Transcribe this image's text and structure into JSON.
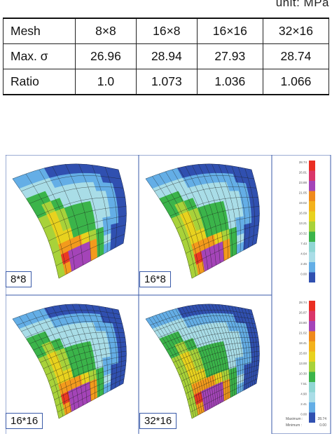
{
  "unit_label": "unit: MPa",
  "table": {
    "header": [
      "Mesh",
      "8×8",
      "16×8",
      "16×16",
      "32×16"
    ],
    "rows": [
      [
        "Max. σ",
        "26.96",
        "28.94",
        "27.93",
        "28.74"
      ],
      [
        "Ratio",
        "1.0",
        "1.073",
        "1.036",
        "1.066"
      ]
    ]
  },
  "panels": [
    {
      "label": "8*8",
      "grid_cols": 8,
      "grid_rows": 8
    },
    {
      "label": "16*8",
      "grid_cols": 16,
      "grid_rows": 8
    },
    {
      "label": "16*16",
      "grid_cols": 16,
      "grid_rows": 16
    },
    {
      "label": "32*16",
      "grid_cols": 32,
      "grid_rows": 16
    }
  ],
  "legend_top": {
    "values": [
      "28.74",
      "26.81",
      "23.88",
      "21.05",
      "19.02",
      "16.09",
      "13.21",
      "10.32",
      "7.43",
      "4.64",
      "2.45",
      "0.00"
    ]
  },
  "legend_bottom": {
    "values": [
      "28.74",
      "26.87",
      "23.80",
      "21.02",
      "18.41",
      "15.60",
      "13.00",
      "10.30",
      "7.51",
      "4.90",
      "2.41",
      "0.00"
    ],
    "maximum_label": "Maximum :",
    "maximum_value": "28.74",
    "minimum_label": "Minimum :",
    "minimum_value": "0.00"
  },
  "colors": {
    "panel_border": "#3a5aa8",
    "contour": [
      "#3050b0",
      "#64aee6",
      "#a9dde7",
      "#3bb44a",
      "#a8d23a",
      "#e8d21e",
      "#f39a1c",
      "#ea3a22",
      "#a444b8"
    ]
  }
}
